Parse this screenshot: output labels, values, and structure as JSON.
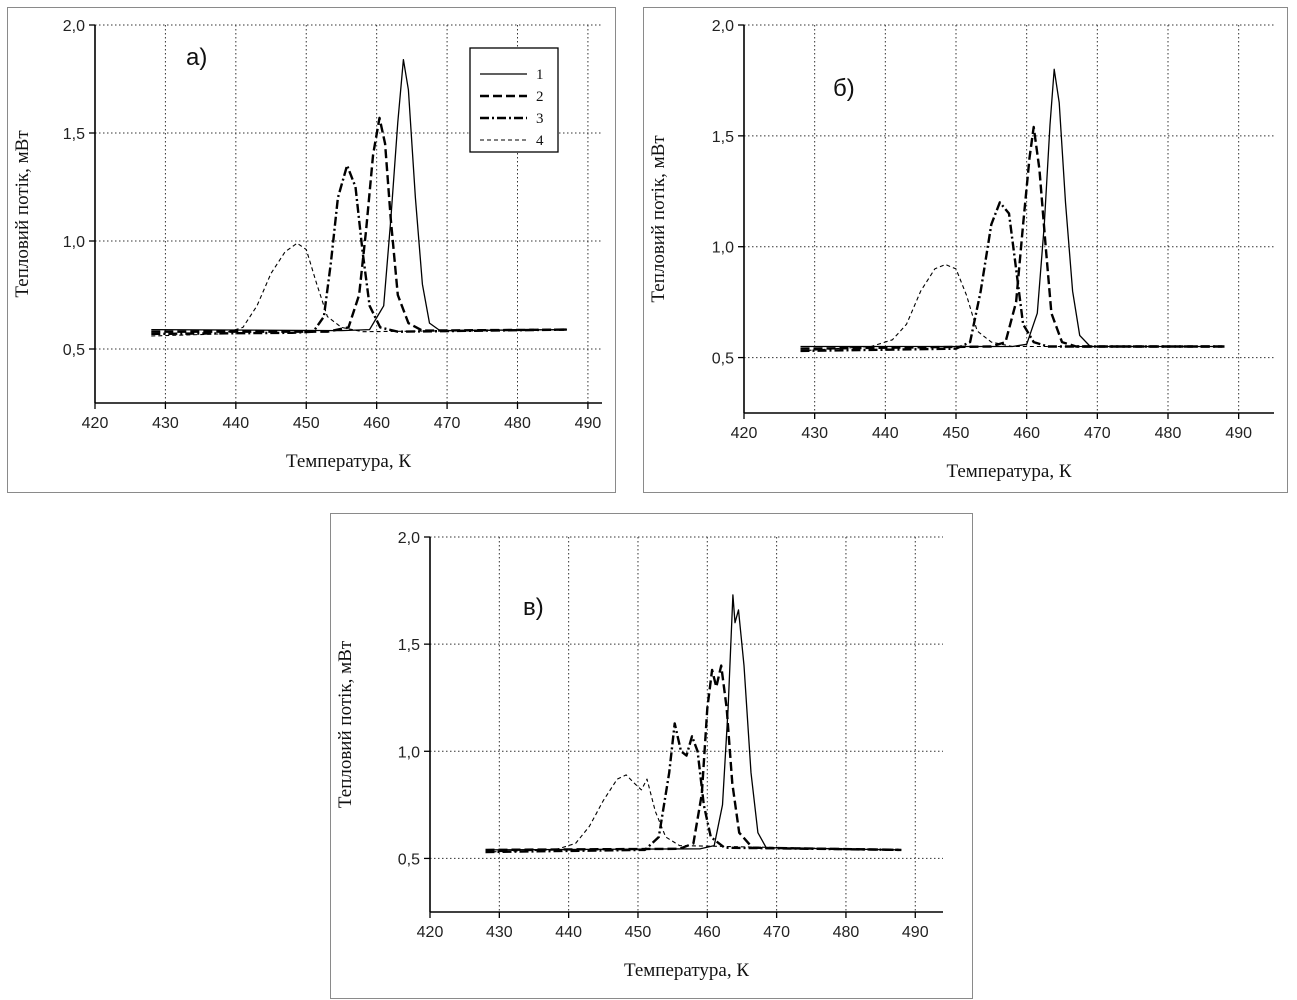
{
  "chart_data": [
    {
      "type": "line",
      "panel_label": "а)",
      "xlabel": "Температура, К",
      "ylabel": "Тепловий потік, мВт",
      "xlim": [
        420,
        492
      ],
      "ylim": [
        0.25,
        2.0
      ],
      "xticks": [
        "420",
        "430",
        "440",
        "450",
        "460",
        "470",
        "480",
        "490"
      ],
      "yticks": [
        "0,5",
        "1,0",
        "1,5",
        "2,0"
      ],
      "grid": true,
      "legend": {
        "placement": "top-right",
        "entries": [
          "1",
          "2",
          "3",
          "4"
        ]
      },
      "series": [
        {
          "name": "1",
          "style": "solid",
          "points": [
            [
              428,
              0.59
            ],
            [
              455,
              0.585
            ],
            [
              459,
              0.59
            ],
            [
              461,
              0.7
            ],
            [
              462,
              1.1
            ],
            [
              463,
              1.55
            ],
            [
              463.8,
              1.84
            ],
            [
              464.5,
              1.7
            ],
            [
              465.5,
              1.2
            ],
            [
              466.5,
              0.8
            ],
            [
              467.5,
              0.62
            ],
            [
              469,
              0.585
            ],
            [
              487,
              0.59
            ]
          ]
        },
        {
          "name": "2",
          "style": "dash",
          "points": [
            [
              428,
              0.58
            ],
            [
              453,
              0.58
            ],
            [
              456,
              0.6
            ],
            [
              457.5,
              0.75
            ],
            [
              458.5,
              1.05
            ],
            [
              459.5,
              1.4
            ],
            [
              460.4,
              1.57
            ],
            [
              461.2,
              1.45
            ],
            [
              462,
              1.1
            ],
            [
              463,
              0.75
            ],
            [
              464.5,
              0.62
            ],
            [
              466.5,
              0.585
            ],
            [
              487,
              0.59
            ]
          ]
        },
        {
          "name": "3",
          "style": "dashdot",
          "points": [
            [
              428,
              0.57
            ],
            [
              448,
              0.575
            ],
            [
              451,
              0.58
            ],
            [
              452.5,
              0.65
            ],
            [
              453.5,
              0.9
            ],
            [
              454.5,
              1.2
            ],
            [
              455.8,
              1.35
            ],
            [
              457,
              1.25
            ],
            [
              458,
              0.95
            ],
            [
              459,
              0.7
            ],
            [
              460.5,
              0.6
            ],
            [
              463,
              0.58
            ],
            [
              487,
              0.59
            ]
          ]
        },
        {
          "name": "4",
          "style": "shortdash",
          "points": [
            [
              428,
              0.56
            ],
            [
              438,
              0.57
            ],
            [
              441,
              0.6
            ],
            [
              443,
              0.7
            ],
            [
              445,
              0.85
            ],
            [
              447,
              0.95
            ],
            [
              448.7,
              0.99
            ],
            [
              450,
              0.96
            ],
            [
              451.5,
              0.8
            ],
            [
              453,
              0.65
            ],
            [
              455,
              0.6
            ],
            [
              458,
              0.58
            ],
            [
              487,
              0.59
            ]
          ]
        }
      ]
    },
    {
      "type": "line",
      "panel_label": "б)",
      "xlabel": "Температура, К",
      "ylabel": "Тепловий потік, мВт",
      "xlim": [
        420,
        495
      ],
      "ylim": [
        0.25,
        2.0
      ],
      "xticks": [
        "420",
        "430",
        "440",
        "450",
        "460",
        "470",
        "480",
        "490"
      ],
      "yticks": [
        "0,5",
        "1,0",
        "1,5",
        "2,0"
      ],
      "grid": true,
      "series": [
        {
          "name": "1",
          "style": "solid",
          "points": [
            [
              428,
              0.55
            ],
            [
              458,
              0.55
            ],
            [
              460,
              0.56
            ],
            [
              461.5,
              0.7
            ],
            [
              462.5,
              1.1
            ],
            [
              463.3,
              1.55
            ],
            [
              463.9,
              1.8
            ],
            [
              464.6,
              1.65
            ],
            [
              465.5,
              1.2
            ],
            [
              466.5,
              0.8
            ],
            [
              467.5,
              0.6
            ],
            [
              469,
              0.55
            ],
            [
              488,
              0.55
            ]
          ]
        },
        {
          "name": "2",
          "style": "dash",
          "points": [
            [
              428,
              0.54
            ],
            [
              455,
              0.55
            ],
            [
              457,
              0.57
            ],
            [
              458.5,
              0.75
            ],
            [
              459.5,
              1.1
            ],
            [
              460.4,
              1.4
            ],
            [
              461,
              1.54
            ],
            [
              461.8,
              1.35
            ],
            [
              462.7,
              1.0
            ],
            [
              463.5,
              0.7
            ],
            [
              465,
              0.57
            ],
            [
              467,
              0.55
            ],
            [
              488,
              0.55
            ]
          ]
        },
        {
          "name": "3",
          "style": "dashdot",
          "points": [
            [
              428,
              0.53
            ],
            [
              450,
              0.54
            ],
            [
              452,
              0.57
            ],
            [
              453.5,
              0.8
            ],
            [
              455,
              1.1
            ],
            [
              456.2,
              1.2
            ],
            [
              457.5,
              1.15
            ],
            [
              458.5,
              0.9
            ],
            [
              459.5,
              0.65
            ],
            [
              461,
              0.57
            ],
            [
              463,
              0.55
            ],
            [
              488,
              0.55
            ]
          ]
        },
        {
          "name": "4",
          "style": "shortdash",
          "points": [
            [
              428,
              0.53
            ],
            [
              438,
              0.55
            ],
            [
              441,
              0.58
            ],
            [
              443,
              0.65
            ],
            [
              445,
              0.8
            ],
            [
              447,
              0.9
            ],
            [
              448.5,
              0.92
            ],
            [
              450,
              0.9
            ],
            [
              451.5,
              0.78
            ],
            [
              453,
              0.62
            ],
            [
              455,
              0.57
            ],
            [
              458,
              0.55
            ],
            [
              488,
              0.55
            ]
          ]
        }
      ]
    },
    {
      "type": "line",
      "panel_label": "в)",
      "xlabel": "Температура, К",
      "ylabel": "Тепловий потік, мВт",
      "xlim": [
        420,
        494
      ],
      "ylim": [
        0.25,
        2.0
      ],
      "xticks": [
        "420",
        "430",
        "440",
        "450",
        "460",
        "470",
        "480",
        "490"
      ],
      "yticks": [
        "0,5",
        "1,0",
        "1,5",
        "2,0"
      ],
      "grid": true,
      "series": [
        {
          "name": "1",
          "style": "solid",
          "points": [
            [
              428,
              0.54
            ],
            [
              459,
              0.545
            ],
            [
              461,
              0.56
            ],
            [
              462.2,
              0.75
            ],
            [
              463,
              1.2
            ],
            [
              463.7,
              1.73
            ],
            [
              464,
              1.6
            ],
            [
              464.5,
              1.66
            ],
            [
              465.3,
              1.4
            ],
            [
              466.3,
              0.9
            ],
            [
              467.3,
              0.62
            ],
            [
              468.5,
              0.55
            ],
            [
              488,
              0.54
            ]
          ]
        },
        {
          "name": "2",
          "style": "dash",
          "points": [
            [
              428,
              0.54
            ],
            [
              456,
              0.545
            ],
            [
              458,
              0.57
            ],
            [
              459.2,
              0.8
            ],
            [
              460,
              1.2
            ],
            [
              460.7,
              1.38
            ],
            [
              461.3,
              1.3
            ],
            [
              462,
              1.4
            ],
            [
              462.8,
              1.2
            ],
            [
              463.6,
              0.85
            ],
            [
              464.6,
              0.62
            ],
            [
              466.5,
              0.55
            ],
            [
              488,
              0.54
            ]
          ]
        },
        {
          "name": "3",
          "style": "dashdot",
          "points": [
            [
              428,
              0.53
            ],
            [
              451,
              0.54
            ],
            [
              453,
              0.6
            ],
            [
              454.5,
              0.9
            ],
            [
              455.3,
              1.13
            ],
            [
              456.2,
              1.0
            ],
            [
              457,
              0.98
            ],
            [
              457.8,
              1.07
            ],
            [
              458.6,
              1.0
            ],
            [
              459.5,
              0.75
            ],
            [
              460.5,
              0.6
            ],
            [
              462.5,
              0.55
            ],
            [
              488,
              0.54
            ]
          ]
        },
        {
          "name": "4",
          "style": "shortdash",
          "points": [
            [
              428,
              0.53
            ],
            [
              438,
              0.54
            ],
            [
              441,
              0.57
            ],
            [
              443,
              0.65
            ],
            [
              445,
              0.77
            ],
            [
              447,
              0.87
            ],
            [
              448.3,
              0.89
            ],
            [
              449.5,
              0.85
            ],
            [
              450.5,
              0.82
            ],
            [
              451.3,
              0.87
            ],
            [
              452.5,
              0.72
            ],
            [
              454,
              0.6
            ],
            [
              456,
              0.56
            ],
            [
              488,
              0.54
            ]
          ]
        }
      ]
    }
  ]
}
